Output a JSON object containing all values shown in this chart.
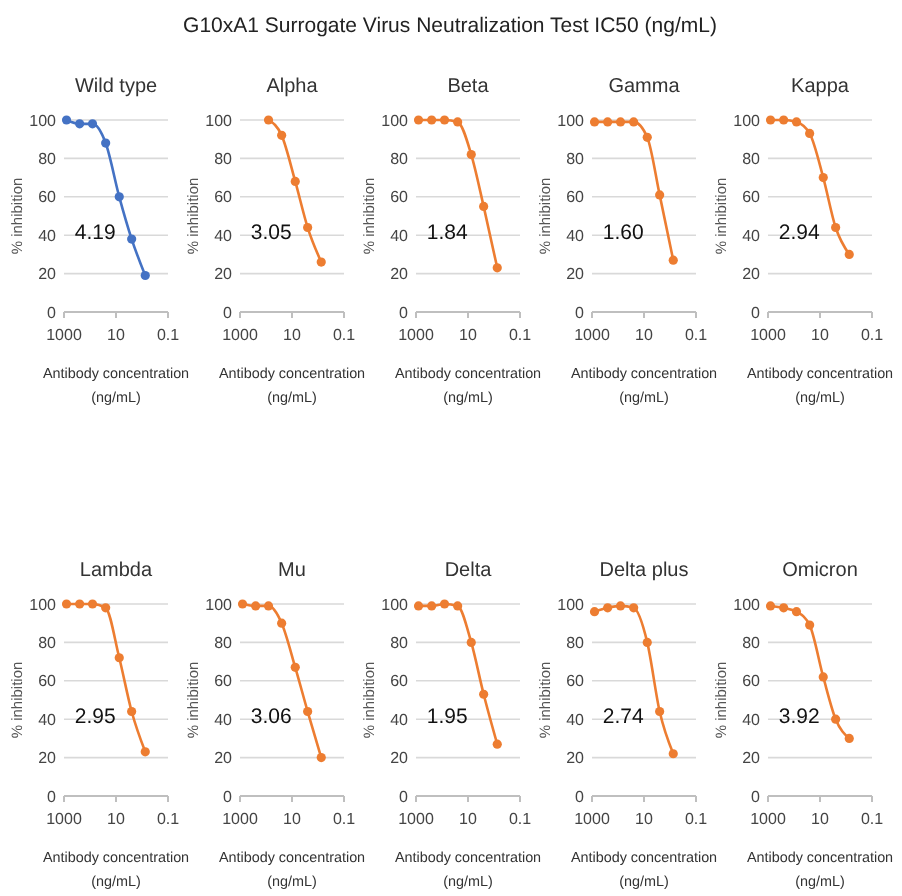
{
  "chart_data": [
    {
      "type": "line",
      "title": "Wild type",
      "xlabel": "Antibody concentration (ng/mL)",
      "ylabel": "% inhibition",
      "annotations": [
        "G10xA1 Surrogate Virus Neutralization Test IC50 (ng/mL)",
        "4.19"
      ],
      "log": "x",
      "xlim": [
        1000,
        0.1
      ],
      "xticks": [
        1000,
        10,
        0.1
      ],
      "ylim": [
        0,
        100
      ],
      "yticks": [
        0,
        20,
        40,
        60,
        80,
        100
      ],
      "grid": "y",
      "marker": "circle",
      "series": [
        {
          "color": "#4472c4",
          "x": [
            800,
            250,
            80,
            25,
            7.5,
            2.5,
            0.75
          ],
          "values": [
            100,
            98,
            98,
            88,
            60,
            38,
            19
          ]
        }
      ]
    },
    {
      "type": "line",
      "title": "Alpha",
      "xlabel": "Antibody concentration (ng/mL)",
      "ylabel": "% inhibition",
      "annotations": [
        "3.05"
      ],
      "log": "x",
      "xlim": [
        1000,
        0.1
      ],
      "xticks": [
        1000,
        10,
        0.1
      ],
      "ylim": [
        0,
        100
      ],
      "yticks": [
        0,
        20,
        40,
        60,
        80,
        100
      ],
      "grid": "y",
      "marker": "circle",
      "series": [
        {
          "color": "#ed7d31",
          "x": [
            80,
            25,
            7.5,
            2.5,
            0.75
          ],
          "values": [
            100,
            92,
            68,
            44,
            26
          ]
        }
      ]
    },
    {
      "type": "line",
      "title": "Beta",
      "xlabel": "Antibody concentration (ng/mL)",
      "ylabel": "% inhibition",
      "annotations": [
        "1.84"
      ],
      "log": "x",
      "xlim": [
        1000,
        0.1
      ],
      "xticks": [
        1000,
        10,
        0.1
      ],
      "ylim": [
        0,
        100
      ],
      "yticks": [
        0,
        20,
        40,
        60,
        80,
        100
      ],
      "grid": "y",
      "marker": "circle",
      "series": [
        {
          "color": "#ed7d31",
          "x": [
            800,
            250,
            80,
            25,
            7.5,
            2.5,
            0.75
          ],
          "values": [
            100,
            100,
            100,
            99,
            82,
            55,
            23
          ]
        }
      ]
    },
    {
      "type": "line",
      "title": "Gamma",
      "xlabel": "Antibody concentration (ng/mL)",
      "ylabel": "% inhibition",
      "annotations": [
        "1.60"
      ],
      "log": "x",
      "xlim": [
        1000,
        0.1
      ],
      "xticks": [
        1000,
        10,
        0.1
      ],
      "ylim": [
        0,
        100
      ],
      "yticks": [
        0,
        20,
        40,
        60,
        80,
        100
      ],
      "grid": "y",
      "marker": "circle",
      "series": [
        {
          "color": "#ed7d31",
          "x": [
            800,
            250,
            80,
            25,
            7.5,
            2.5,
            0.75
          ],
          "values": [
            99,
            99,
            99,
            99,
            91,
            61,
            27
          ]
        }
      ]
    },
    {
      "type": "line",
      "title": "Kappa",
      "xlabel": "Antibody concentration (ng/mL)",
      "ylabel": "% inhibition",
      "annotations": [
        "2.94"
      ],
      "log": "x",
      "xlim": [
        1000,
        0.1
      ],
      "xticks": [
        1000,
        10,
        0.1
      ],
      "ylim": [
        0,
        100
      ],
      "yticks": [
        0,
        20,
        40,
        60,
        80,
        100
      ],
      "grid": "y",
      "marker": "circle",
      "series": [
        {
          "color": "#ed7d31",
          "x": [
            800,
            250,
            80,
            25,
            7.5,
            2.5,
            0.75
          ],
          "values": [
            100,
            100,
            99,
            93,
            70,
            44,
            30
          ]
        }
      ]
    },
    {
      "type": "line",
      "title": "Lambda",
      "xlabel": "Antibody concentration (ng/mL)",
      "ylabel": "% inhibition",
      "annotations": [
        "2.95"
      ],
      "log": "x",
      "xlim": [
        1000,
        0.1
      ],
      "xticks": [
        1000,
        10,
        0.1
      ],
      "ylim": [
        0,
        100
      ],
      "yticks": [
        0,
        20,
        40,
        60,
        80,
        100
      ],
      "grid": "y",
      "marker": "circle",
      "series": [
        {
          "color": "#ed7d31",
          "x": [
            800,
            250,
            80,
            25,
            7.5,
            2.5,
            0.75
          ],
          "values": [
            100,
            100,
            100,
            98,
            72,
            44,
            23
          ]
        }
      ]
    },
    {
      "type": "line",
      "title": "Mu",
      "xlabel": "Antibody concentration (ng/mL)",
      "ylabel": "% inhibition",
      "annotations": [
        "3.06"
      ],
      "log": "x",
      "xlim": [
        1000,
        0.1
      ],
      "xticks": [
        1000,
        10,
        0.1
      ],
      "ylim": [
        0,
        100
      ],
      "yticks": [
        0,
        20,
        40,
        60,
        80,
        100
      ],
      "grid": "y",
      "marker": "circle",
      "series": [
        {
          "color": "#ed7d31",
          "x": [
            800,
            250,
            80,
            25,
            7.5,
            2.5,
            0.75
          ],
          "values": [
            100,
            99,
            99,
            90,
            67,
            44,
            20
          ]
        }
      ]
    },
    {
      "type": "line",
      "title": "Delta",
      "xlabel": "Antibody concentration (ng/mL)",
      "ylabel": "% inhibition",
      "annotations": [
        "1.95"
      ],
      "log": "x",
      "xlim": [
        1000,
        0.1
      ],
      "xticks": [
        1000,
        10,
        0.1
      ],
      "ylim": [
        0,
        100
      ],
      "yticks": [
        0,
        20,
        40,
        60,
        80,
        100
      ],
      "grid": "y",
      "marker": "circle",
      "series": [
        {
          "color": "#ed7d31",
          "x": [
            800,
            250,
            80,
            25,
            7.5,
            2.5,
            0.75
          ],
          "values": [
            99,
            99,
            100,
            99,
            80,
            53,
            27
          ]
        }
      ]
    },
    {
      "type": "line",
      "title": "Delta plus",
      "xlabel": "Antibody concentration (ng/mL)",
      "ylabel": "% inhibition",
      "annotations": [
        "2.74"
      ],
      "log": "x",
      "xlim": [
        1000,
        0.1
      ],
      "xticks": [
        1000,
        10,
        0.1
      ],
      "ylim": [
        0,
        100
      ],
      "yticks": [
        0,
        20,
        40,
        60,
        80,
        100
      ],
      "grid": "y",
      "marker": "circle",
      "series": [
        {
          "color": "#ed7d31",
          "x": [
            800,
            250,
            80,
            25,
            7.5,
            2.5,
            0.75
          ],
          "values": [
            96,
            98,
            99,
            98,
            80,
            44,
            22
          ]
        }
      ]
    },
    {
      "type": "line",
      "title": "Omicron",
      "xlabel": "Antibody concentration (ng/mL)",
      "ylabel": "% inhibition",
      "annotations": [
        "3.92"
      ],
      "log": "x",
      "xlim": [
        1000,
        0.1
      ],
      "xticks": [
        1000,
        10,
        0.1
      ],
      "ylim": [
        0,
        100
      ],
      "yticks": [
        0,
        20,
        40,
        60,
        80,
        100
      ],
      "grid": "y",
      "marker": "circle",
      "series": [
        {
          "color": "#ed7d31",
          "x": [
            800,
            250,
            80,
            25,
            7.5,
            2.5,
            0.75
          ],
          "values": [
            99,
            98,
            96,
            89,
            62,
            40,
            30
          ]
        }
      ]
    }
  ]
}
